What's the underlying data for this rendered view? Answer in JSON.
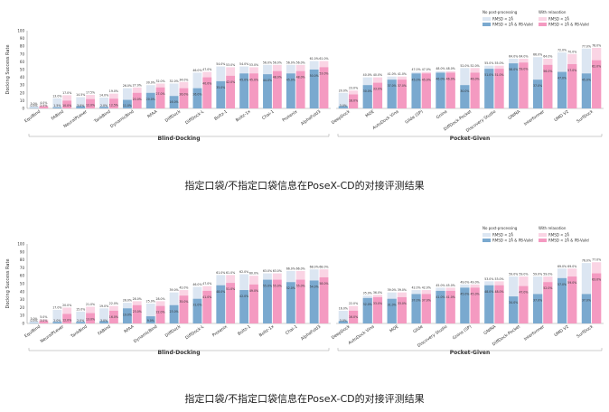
{
  "palette": {
    "base_blue": "#7aa9cf",
    "base_pink": "#f49ac1",
    "top_blue": "#dce6f2",
    "top_pink": "#fad4e4",
    "axis": "#999999",
    "text": "#333333"
  },
  "legend": {
    "col1_title": "No post-processing",
    "col2_title": "With relaxation",
    "rmsd": "RMSD < 2Å",
    "rmsd_pb": "RMSD < 2Å & PB-Valid"
  },
  "chart_data": [
    {
      "type": "bar",
      "ylabel": "Docking Success Rate",
      "ylim": [
        0,
        100
      ],
      "yticks": [
        0,
        10,
        20,
        30,
        40,
        50,
        60,
        70,
        80,
        90,
        100
      ],
      "caption": "指定口袋/不指定口袋信息在PoseX-CD的对接评测结果",
      "groups": [
        {
          "name": "Blind-Docking",
          "methods": [
            {
              "name": "EquiBind",
              "raw_top": 3.0,
              "raw_base": 0.5,
              "rel_top": 4.0,
              "rel_base": 2.5
            },
            {
              "name": "FABind",
              "raw_top": 13.0,
              "raw_base": 1.5,
              "rel_top": 17.0,
              "rel_base": 10.0
            },
            {
              "name": "NeuralPLexer",
              "raw_top": 14.5,
              "raw_base": 3.0,
              "rel_top": 17.5,
              "rel_base": 12.0
            },
            {
              "name": "TankBind",
              "raw_top": 14.0,
              "raw_base": 2.0,
              "rel_top": 19.0,
              "rel_base": 12.5
            },
            {
              "name": "DynamicBind",
              "raw_top": 26.0,
              "raw_base": 11.0,
              "rel_top": 27.0,
              "rel_base": 20.0
            },
            {
              "name": "RFAA",
              "raw_top": 30.0,
              "raw_base": 20.0,
              "rel_top": 32.0,
              "rel_base": 27.0
            },
            {
              "name": "DiffDock",
              "raw_top": 32.0,
              "raw_base": 16.0,
              "rel_top": 34.0,
              "rel_base": 26.0
            },
            {
              "name": "DiffDock-L",
              "raw_top": 46.0,
              "raw_base": 26.0,
              "rel_top": 47.0,
              "rel_base": 40.0
            },
            {
              "name": "Boltz-1",
              "raw_top": 54.0,
              "raw_base": 35.0,
              "rel_top": 53.0,
              "rel_base": 42.0
            },
            {
              "name": "Boltz-1x",
              "raw_top": 54.0,
              "raw_base": 45.0,
              "rel_top": 53.0,
              "rel_base": 45.0
            },
            {
              "name": "Chai-1",
              "raw_top": 56.0,
              "raw_base": 44.0,
              "rel_top": 56.0,
              "rel_base": 48.0
            },
            {
              "name": "Protenix",
              "raw_top": 56.0,
              "raw_base": 45.0,
              "rel_top": 56.0,
              "rel_base": 48.0
            },
            {
              "name": "AlphaFold3",
              "raw_top": 61.0,
              "raw_base": 50.0,
              "rel_top": 61.0,
              "rel_base": 53.0
            }
          ]
        },
        {
          "name": "Pocket-Given",
          "methods": [
            {
              "name": "DeepDock",
              "raw_top": 20.0,
              "raw_base": 3.0,
              "rel_top": 23.0,
              "rel_base": 18.0
            },
            {
              "name": "MOE",
              "raw_top": 40.0,
              "raw_base": 30.0,
              "rel_top": 40.0,
              "rel_base": 33.0
            },
            {
              "name": "AutoDock Vina",
              "raw_top": 41.0,
              "raw_base": 37.0,
              "rel_top": 41.0,
              "rel_base": 37.0
            },
            {
              "name": "Glide (SP)",
              "raw_top": 47.0,
              "raw_base": 45.0,
              "rel_top": 47.0,
              "rel_base": 45.0
            },
            {
              "name": "Gnina",
              "raw_top": 48.0,
              "raw_base": 46.0,
              "rel_top": 48.0,
              "rel_base": 46.0
            },
            {
              "name": "DiffDock-Pocket",
              "raw_top": 52.0,
              "raw_base": 30.0,
              "rel_top": 52.0,
              "rel_base": 46.0
            },
            {
              "name": "Discovery Studio",
              "raw_top": 55.0,
              "raw_base": 51.0,
              "rel_top": 55.0,
              "rel_base": 51.0
            },
            {
              "name": "GNINA",
              "raw_top": 64.0,
              "raw_base": 58.0,
              "rel_top": 64.0,
              "rel_base": 59.0
            },
            {
              "name": "Interformer",
              "raw_top": 66.0,
              "raw_base": 37.0,
              "rel_top": 64.0,
              "rel_base": 56.0
            },
            {
              "name": "UMD V2",
              "raw_top": 72.0,
              "raw_base": 47.0,
              "rel_top": 70.0,
              "rel_base": 57.0
            },
            {
              "name": "SurfDock",
              "raw_top": 77.0,
              "raw_base": 45.0,
              "rel_top": 78.0,
              "rel_base": 62.0
            }
          ]
        }
      ]
    },
    {
      "type": "bar",
      "ylabel": "Docking Success Rate",
      "ylim": [
        0,
        100
      ],
      "yticks": [
        0,
        10,
        20,
        30,
        40,
        50,
        60,
        70,
        80,
        90,
        100
      ],
      "caption": "指定口袋/不指定口袋信息在PoseX-CD的对接评测结果",
      "groups": [
        {
          "name": "Blind-Docking",
          "methods": [
            {
              "name": "EquiBind",
              "raw_top": 3.0,
              "raw_base": 0.5,
              "rel_top": 5.0,
              "rel_base": 3.0
            },
            {
              "name": "NeuralPLexer",
              "raw_top": 17.0,
              "raw_base": 2.0,
              "rel_top": 20.0,
              "rel_base": 12.0
            },
            {
              "name": "TankBind",
              "raw_top": 15.0,
              "raw_base": 2.0,
              "rel_top": 21.0,
              "rel_base": 13.0
            },
            {
              "name": "FABind",
              "raw_top": 19.0,
              "raw_base": 3.0,
              "rel_top": 22.0,
              "rel_base": 16.0
            },
            {
              "name": "RFAA",
              "raw_top": 26.0,
              "raw_base": 19.0,
              "rel_top": 28.0,
              "rel_base": 23.0
            },
            {
              "name": "DynamicBind",
              "raw_top": 25.0,
              "raw_base": 9.0,
              "rel_top": 28.0,
              "rel_base": 22.0
            },
            {
              "name": "DiffDock",
              "raw_top": 39.0,
              "raw_base": 23.0,
              "rel_top": 42.0,
              "rel_base": 35.0
            },
            {
              "name": "DiffDock-L",
              "raw_top": 46.0,
              "raw_base": 31.0,
              "rel_top": 47.0,
              "rel_base": 41.0
            },
            {
              "name": "Protenix",
              "raw_top": 61.0,
              "raw_base": 48.0,
              "rel_top": 61.0,
              "rel_base": 51.0
            },
            {
              "name": "Boltz-1",
              "raw_top": 62.0,
              "raw_base": 42.0,
              "rel_top": 60.0,
              "rel_base": 49.0
            },
            {
              "name": "Boltz-1x",
              "raw_top": 63.0,
              "raw_base": 55.0,
              "rel_top": 63.0,
              "rel_base": 55.0
            },
            {
              "name": "Chai-1",
              "raw_top": 66.0,
              "raw_base": 52.0,
              "rel_top": 66.0,
              "rel_base": 55.0
            },
            {
              "name": "AlphaFold3",
              "raw_top": 68.0,
              "raw_base": 54.0,
              "rel_top": 68.0,
              "rel_base": 58.0
            }
          ]
        },
        {
          "name": "Pocket-Given",
          "methods": [
            {
              "name": "DeepDock",
              "raw_top": 16.0,
              "raw_base": 3.0,
              "rel_top": 22.0,
              "rel_base": 16.0
            },
            {
              "name": "AutoDock Vina",
              "raw_top": 35.0,
              "raw_base": 32.0,
              "rel_top": 36.0,
              "rel_base": 33.0
            },
            {
              "name": "MOE",
              "raw_top": 39.0,
              "raw_base": 31.0,
              "rel_top": 39.0,
              "rel_base": 33.0
            },
            {
              "name": "Glide",
              "raw_top": 42.0,
              "raw_base": 37.0,
              "rel_top": 42.0,
              "rel_base": 37.0
            },
            {
              "name": "Discovery Studio",
              "raw_top": 45.0,
              "raw_base": 41.0,
              "rel_top": 45.0,
              "rel_base": 41.0
            },
            {
              "name": "Gnina (SP)",
              "raw_top": 49.0,
              "raw_base": 45.0,
              "rel_top": 49.0,
              "rel_base": 45.0
            },
            {
              "name": "GNINA",
              "raw_top": 53.0,
              "raw_base": 48.0,
              "rel_top": 53.0,
              "rel_base": 48.0
            },
            {
              "name": "DiffDock-Pocket",
              "raw_top": 59.0,
              "raw_base": 34.0,
              "rel_top": 59.0,
              "rel_base": 47.0
            },
            {
              "name": "Interformer",
              "raw_top": 59.0,
              "raw_base": 37.0,
              "rel_top": 59.0,
              "rel_base": 52.0
            },
            {
              "name": "UMD V2",
              "raw_top": 69.0,
              "raw_base": 57.0,
              "rel_top": 69.0,
              "rel_base": 59.0
            },
            {
              "name": "SurfDock",
              "raw_top": 76.0,
              "raw_base": 37.0,
              "rel_top": 77.0,
              "rel_base": 63.0
            }
          ]
        }
      ]
    }
  ]
}
